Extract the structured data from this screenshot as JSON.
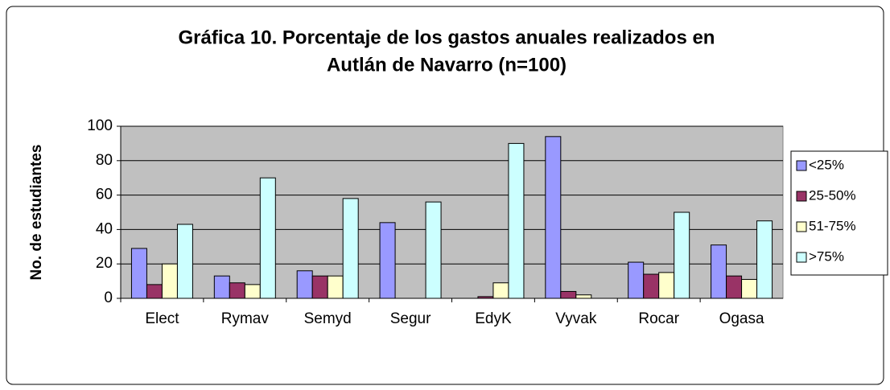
{
  "chart_data": {
    "type": "bar",
    "title": [
      "Gráfica 10. Porcentaje de los gastos anuales realizados en",
      "Autlán de Navarro (n=100)"
    ],
    "y_label": "No. de estudiantes",
    "categories": [
      "Elect",
      "Rymav",
      "Semyd",
      "Segur",
      "EdyK",
      "Vyvak",
      "Rocar",
      "Ogasa"
    ],
    "series": [
      {
        "name": "<25%",
        "color": "#9999ff",
        "values": [
          29,
          13,
          16,
          44,
          0,
          94,
          21,
          31
        ]
      },
      {
        "name": "25-50%",
        "color": "#993366",
        "values": [
          8,
          9,
          13,
          0,
          1,
          4,
          14,
          13
        ]
      },
      {
        "name": "51-75%",
        "color": "#ffffcc",
        "values": [
          20,
          8,
          13,
          0,
          9,
          2,
          15,
          11
        ]
      },
      {
        "name": ">75%",
        "color": "#ccffff",
        "values": [
          43,
          70,
          58,
          56,
          90,
          0,
          50,
          45
        ]
      }
    ],
    "ylim": [
      0,
      100
    ],
    "yticks": [
      0,
      20,
      40,
      60,
      80,
      100
    ],
    "grid": true,
    "legend": "right"
  }
}
